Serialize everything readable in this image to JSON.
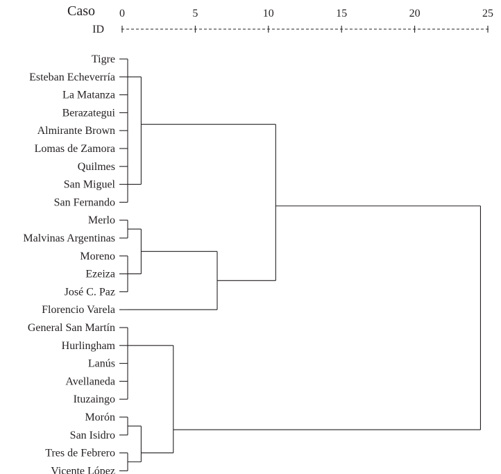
{
  "chart_data": {
    "type": "dendrogram",
    "xlabel": "Caso",
    "ylabel": "ID",
    "xlim": [
      0,
      25
    ],
    "x_ticks": [
      0,
      5,
      10,
      15,
      20,
      25
    ],
    "x_tick_labels": [
      "0",
      "5",
      "10",
      "15",
      "20",
      "25"
    ],
    "leaves": [
      "Tigre",
      "Esteban Echeverría",
      "La Matanza",
      "Berazategui",
      "Almirante Brown",
      "Lomas de Zamora",
      "Quilmes",
      "San Miguel",
      "San Fernando",
      "Merlo",
      "Malvinas Argentinas",
      "Moreno",
      "Ezeiza",
      "José C. Paz",
      "Florencio Varela",
      "General San Martín",
      "Hurlingham",
      "Lanús",
      "Avellaneda",
      "Ituzaingo",
      "Morón",
      "San Isidro",
      "Tres de Febrero",
      "Vicente López"
    ],
    "merges": [
      {
        "members": [
          0,
          1,
          2,
          3,
          4,
          5,
          6,
          7,
          8
        ],
        "height": 0.6
      },
      {
        "members": [
          9,
          10
        ],
        "height": 0.6
      },
      {
        "members": [
          11,
          12,
          13
        ],
        "height": 0.6
      },
      {
        "members": [
          15,
          16,
          17,
          18,
          19
        ],
        "height": 0.6
      },
      {
        "members": [
          20,
          21
        ],
        "height": 0.6
      },
      {
        "members": [
          22,
          23
        ],
        "height": 0.6
      },
      {
        "members": [
          "1",
          "2"
        ],
        "height": 1.3
      },
      {
        "members": [
          "4",
          "5"
        ],
        "height": 1.3
      },
      {
        "members": [
          "0"
        ],
        "height": 1.3
      },
      {
        "members": [
          "8",
          14
        ],
        "height": 6.5
      },
      {
        "members": [
          "3",
          "7"
        ],
        "height": 3.5
      },
      {
        "members": [
          "9a",
          "8b"
        ],
        "height": 10.5
      },
      {
        "members": [
          "10",
          "11"
        ],
        "height": 24.5
      }
    ]
  }
}
